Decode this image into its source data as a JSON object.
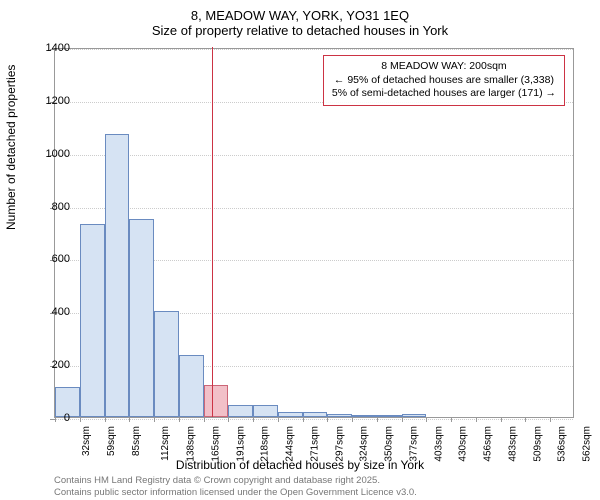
{
  "title_line1": "8, MEADOW WAY, YORK, YO31 1EQ",
  "title_line2": "Size of property relative to detached houses in York",
  "ylabel": "Number of detached properties",
  "xlabel": "Distribution of detached houses by size in York",
  "footer_line1": "Contains HM Land Registry data © Crown copyright and database right 2025.",
  "footer_line2": "Contains public sector information licensed under the Open Government Licence v3.0.",
  "annotation": {
    "line1": "8 MEADOW WAY: 200sqm",
    "line2": "← 95% of detached houses are smaller (3,338)",
    "line3": "5% of semi-detached houses are larger (171) →"
  },
  "histogram": {
    "type": "histogram",
    "background_color": "#ffffff",
    "grid_color": "#cccccc",
    "axis_color": "#999999",
    "bar_fill": "#d6e3f3",
    "bar_stroke": "#6a8bc0",
    "highlight_fill": "#f2c0c8",
    "highlight_stroke": "#cc6677",
    "marker_color": "#cc3344",
    "title_fontsize": 13,
    "label_fontsize": 12,
    "tick_fontsize": 11,
    "ylim": [
      0,
      1400
    ],
    "ytick_step": 200,
    "yticks": [
      0,
      200,
      400,
      600,
      800,
      1000,
      1200,
      1400
    ],
    "xticks": [
      "32sqm",
      "59sqm",
      "85sqm",
      "112sqm",
      "138sqm",
      "165sqm",
      "191sqm",
      "218sqm",
      "244sqm",
      "271sqm",
      "297sqm",
      "324sqm",
      "350sqm",
      "377sqm",
      "403sqm",
      "430sqm",
      "456sqm",
      "483sqm",
      "509sqm",
      "536sqm",
      "562sqm"
    ],
    "bar_width": 1.0,
    "bins": [
      {
        "x": 32,
        "count": 115
      },
      {
        "x": 59,
        "count": 730
      },
      {
        "x": 85,
        "count": 1070
      },
      {
        "x": 112,
        "count": 750
      },
      {
        "x": 138,
        "count": 400
      },
      {
        "x": 165,
        "count": 235
      },
      {
        "x": 191,
        "count": 120,
        "highlight": true
      },
      {
        "x": 218,
        "count": 45
      },
      {
        "x": 244,
        "count": 45
      },
      {
        "x": 271,
        "count": 20
      },
      {
        "x": 297,
        "count": 18
      },
      {
        "x": 324,
        "count": 12
      },
      {
        "x": 350,
        "count": 2
      },
      {
        "x": 377,
        "count": 3
      },
      {
        "x": 403,
        "count": 10
      },
      {
        "x": 430,
        "count": 0
      },
      {
        "x": 456,
        "count": 0
      },
      {
        "x": 483,
        "count": 0
      },
      {
        "x": 509,
        "count": 0
      },
      {
        "x": 536,
        "count": 0
      },
      {
        "x": 562,
        "count": 0
      }
    ],
    "marker_x": 200,
    "xlim": [
      32,
      589
    ]
  }
}
